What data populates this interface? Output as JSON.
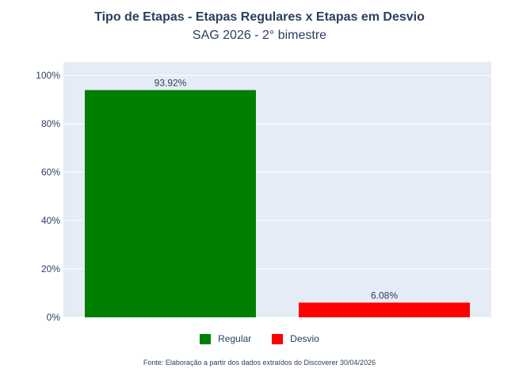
{
  "chart_data": {
    "type": "bar",
    "title": "Tipo de Etapas - Etapas Regulares x Etapas em Desvio",
    "subtitle": "SAG 2026 - 2° bimestre",
    "categories": [
      "Regular",
      "Desvio"
    ],
    "values": [
      93.92,
      6.08
    ],
    "data_labels": [
      "93.92%",
      "6.08%"
    ],
    "colors": [
      "#008000",
      "#ff0000"
    ],
    "ylim": [
      0,
      100
    ],
    "yticks": [
      0,
      20,
      40,
      60,
      80,
      100
    ],
    "ytick_labels": [
      "0%",
      "20%",
      "40%",
      "60%",
      "80%",
      "100%"
    ],
    "grid": true,
    "plot_background": "#e5ecf6",
    "legend": {
      "placement": "bottom-center",
      "entries": [
        {
          "label": "Regular",
          "color": "#008000"
        },
        {
          "label": "Desvio",
          "color": "#ff0000"
        }
      ]
    }
  },
  "source_note": "Fonte: Elaboração a partir dos dados extraídos do Discoverer 30/04/2026"
}
